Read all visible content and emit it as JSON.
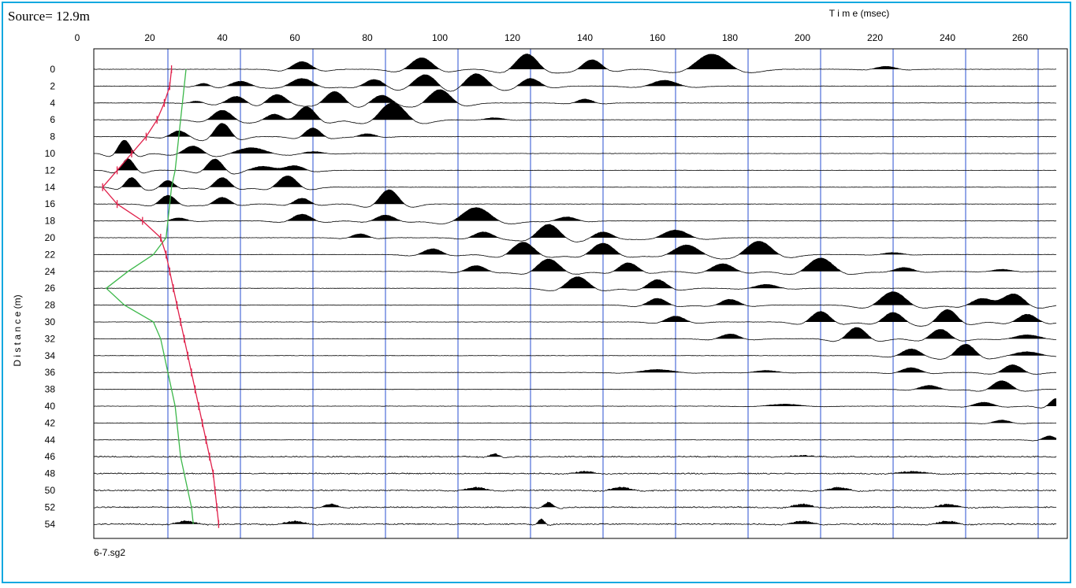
{
  "chart_data": {
    "type": "line",
    "title": "Source= 12.9m",
    "xlabel": "T i m e (msec)",
    "ylabel": "D i s t a n c e (m)",
    "file_label": "6-7.sg2",
    "x_ticks": [
      0,
      20,
      40,
      60,
      80,
      100,
      120,
      140,
      160,
      180,
      200,
      220,
      240,
      260
    ],
    "y_ticks": [
      0,
      2,
      4,
      6,
      8,
      10,
      12,
      14,
      16,
      18,
      20,
      22,
      24,
      26,
      28,
      30,
      32,
      34,
      36,
      38,
      40,
      42,
      44,
      46,
      48,
      50,
      52,
      54
    ],
    "xlim": [
      0,
      270
    ],
    "ylim": [
      0,
      55
    ],
    "grid_lines_x": [
      25,
      45,
      65,
      85,
      105,
      125,
      145,
      165,
      185,
      205,
      225,
      245,
      265
    ],
    "colors": {
      "frame": "#12a8e0",
      "grid": "#2a4fd0",
      "first_break": "#e0204a",
      "model_curve": "#3cb84a",
      "trace": "#000000"
    },
    "first_break_picks": {
      "name": "first breaks",
      "distance": [
        0,
        2,
        4,
        6,
        8,
        10,
        12,
        14,
        16,
        18,
        20,
        22,
        24,
        26,
        28,
        30,
        32,
        34,
        36,
        38,
        40,
        42,
        44,
        46,
        48,
        50,
        52,
        54
      ],
      "time_ms": [
        26,
        25.5,
        24,
        22,
        19,
        15,
        11,
        7,
        11,
        18,
        23,
        24.5,
        25.5,
        26.5,
        27.5,
        28.5,
        29.5,
        30.5,
        31.5,
        32.5,
        33.5,
        34.5,
        35.5,
        36.5,
        37.5,
        38,
        38.5,
        39
      ]
    },
    "model_curve": {
      "name": "model",
      "distance": [
        0,
        2,
        4,
        6,
        8,
        10,
        12,
        14,
        16,
        18,
        20,
        22,
        24,
        26,
        28,
        30,
        32,
        34,
        36,
        38,
        40,
        42,
        44,
        46,
        48,
        50,
        52,
        54
      ],
      "time_ms": [
        30,
        29.5,
        29,
        28.5,
        28,
        27.5,
        27,
        26,
        25.5,
        25,
        24.5,
        21,
        14,
        8,
        13,
        21,
        23,
        24,
        25,
        26,
        27,
        27.5,
        28,
        28.5,
        29.5,
        30.5,
        31.5,
        32
      ]
    },
    "traces": [
      {
        "distance": 0,
        "events": [
          [
            62,
            0.8,
            6
          ],
          [
            95,
            1.2,
            7
          ],
          [
            124,
            1.6,
            7
          ],
          [
            142,
            1.0,
            6
          ],
          [
            175,
            1.6,
            10
          ],
          [
            223,
            0.3,
            6
          ]
        ]
      },
      {
        "distance": 2,
        "events": [
          [
            35,
            0.3,
            4
          ],
          [
            45,
            0.5,
            6
          ],
          [
            62,
            0.8,
            7
          ],
          [
            82,
            0.7,
            6
          ],
          [
            96,
            1.2,
            7
          ],
          [
            110,
            1.3,
            7
          ],
          [
            125,
            0.8,
            6
          ],
          [
            162,
            0.6,
            8
          ]
        ]
      },
      {
        "distance": 4,
        "events": [
          [
            33,
            0.2,
            4
          ],
          [
            44,
            0.7,
            6
          ],
          [
            55,
            0.9,
            6
          ],
          [
            71,
            1.2,
            6
          ],
          [
            84,
            0.8,
            6
          ],
          [
            100,
            1.4,
            7
          ],
          [
            140,
            0.4,
            5
          ]
        ]
      },
      {
        "distance": 6,
        "events": [
          [
            40,
            1.0,
            6
          ],
          [
            55,
            0.8,
            6
          ],
          [
            63,
            1.5,
            6
          ],
          [
            87,
            1.8,
            8
          ],
          [
            115,
            0.2,
            6
          ]
        ]
      },
      {
        "distance": 8,
        "events": [
          [
            28,
            0.6,
            5
          ],
          [
            40,
            1.4,
            5
          ],
          [
            65,
            0.9,
            5
          ],
          [
            80,
            0.3,
            5
          ]
        ]
      },
      {
        "distance": 10,
        "events": [
          [
            13,
            1.4,
            4
          ],
          [
            32,
            0.8,
            6
          ],
          [
            48,
            0.6,
            9
          ],
          [
            65,
            0.2,
            6
          ]
        ]
      },
      {
        "distance": 12,
        "events": [
          [
            14,
            1.2,
            4
          ],
          [
            38,
            1.2,
            5
          ],
          [
            52,
            0.5,
            8
          ],
          [
            60,
            0.6,
            6
          ]
        ]
      },
      {
        "distance": 14,
        "events": [
          [
            15,
            1.0,
            4
          ],
          [
            25,
            0.7,
            4
          ],
          [
            40,
            1.0,
            5
          ],
          [
            58,
            1.2,
            6
          ]
        ]
      },
      {
        "distance": 16,
        "events": [
          [
            25,
            0.9,
            5
          ],
          [
            40,
            0.7,
            5
          ],
          [
            62,
            0.6,
            5
          ],
          [
            86,
            1.5,
            6
          ]
        ]
      },
      {
        "distance": 18,
        "events": [
          [
            28,
            0.3,
            5
          ],
          [
            62,
            0.7,
            6
          ],
          [
            85,
            0.6,
            6
          ],
          [
            110,
            1.4,
            9
          ],
          [
            135,
            0.4,
            6
          ]
        ]
      },
      {
        "distance": 20,
        "events": [
          [
            78,
            0.4,
            5
          ],
          [
            112,
            0.6,
            6
          ],
          [
            130,
            1.4,
            7
          ],
          [
            145,
            0.6,
            6
          ],
          [
            165,
            0.8,
            8
          ]
        ]
      },
      {
        "distance": 22,
        "events": [
          [
            98,
            0.6,
            6
          ],
          [
            123,
            1.3,
            7
          ],
          [
            145,
            1.2,
            7
          ],
          [
            168,
            1.0,
            8
          ],
          [
            188,
            1.4,
            8
          ],
          [
            225,
            0.2,
            6
          ]
        ]
      },
      {
        "distance": 24,
        "events": [
          [
            110,
            0.6,
            6
          ],
          [
            130,
            1.3,
            7
          ],
          [
            152,
            0.9,
            6
          ],
          [
            178,
            0.8,
            7
          ],
          [
            205,
            1.4,
            8
          ],
          [
            228,
            0.4,
            6
          ],
          [
            255,
            0.2,
            6
          ]
        ]
      },
      {
        "distance": 26,
        "events": [
          [
            138,
            1.2,
            7
          ],
          [
            160,
            0.9,
            6
          ],
          [
            190,
            0.4,
            7
          ]
        ]
      },
      {
        "distance": 28,
        "events": [
          [
            160,
            0.7,
            6
          ],
          [
            180,
            0.6,
            6
          ],
          [
            225,
            1.4,
            8
          ],
          [
            250,
            1.0,
            7
          ],
          [
            258,
            1.4,
            7
          ]
        ]
      },
      {
        "distance": 30,
        "events": [
          [
            165,
            0.6,
            6
          ],
          [
            205,
            1.1,
            6
          ],
          [
            225,
            1.0,
            6
          ],
          [
            240,
            1.3,
            6
          ],
          [
            262,
            0.8,
            6
          ]
        ]
      },
      {
        "distance": 32,
        "events": [
          [
            180,
            0.5,
            6
          ],
          [
            215,
            1.2,
            6
          ],
          [
            238,
            1.0,
            6
          ],
          [
            262,
            0.4,
            8
          ]
        ]
      },
      {
        "distance": 34,
        "events": [
          [
            230,
            0.7,
            6
          ],
          [
            245,
            1.2,
            6
          ],
          [
            262,
            0.4,
            8
          ]
        ]
      },
      {
        "distance": 36,
        "events": [
          [
            160,
            0.3,
            10
          ],
          [
            190,
            0.2,
            7
          ],
          [
            230,
            0.5,
            6
          ],
          [
            258,
            0.8,
            6
          ]
        ]
      },
      {
        "distance": 38,
        "events": [
          [
            235,
            0.4,
            6
          ],
          [
            255,
            0.9,
            6
          ]
        ]
      },
      {
        "distance": 40,
        "events": [
          [
            195,
            0.2,
            10
          ],
          [
            250,
            0.4,
            6
          ],
          [
            270,
            0.8,
            4
          ]
        ]
      },
      {
        "distance": 42,
        "events": [
          [
            255,
            0.3,
            5
          ]
        ]
      },
      {
        "distance": 44,
        "events": [
          [
            268,
            0.4,
            4
          ]
        ]
      },
      {
        "distance": 46,
        "events": [
          [
            115,
            0.3,
            3
          ],
          [
            200,
            0.1,
            8
          ]
        ]
      },
      {
        "distance": 48,
        "events": [
          [
            140,
            0.2,
            6
          ],
          [
            230,
            0.2,
            8
          ]
        ]
      },
      {
        "distance": 50,
        "events": [
          [
            110,
            0.3,
            6
          ],
          [
            150,
            0.3,
            6
          ],
          [
            210,
            0.3,
            6
          ]
        ]
      },
      {
        "distance": 52,
        "events": [
          [
            70,
            0.3,
            4
          ],
          [
            130,
            0.5,
            3
          ],
          [
            200,
            0.3,
            6
          ],
          [
            240,
            0.3,
            6
          ]
        ]
      },
      {
        "distance": 54,
        "events": [
          [
            30,
            0.3,
            6
          ],
          [
            60,
            0.3,
            6
          ],
          [
            128,
            0.5,
            2
          ],
          [
            200,
            0.3,
            6
          ],
          [
            240,
            0.3,
            6
          ]
        ]
      }
    ]
  }
}
